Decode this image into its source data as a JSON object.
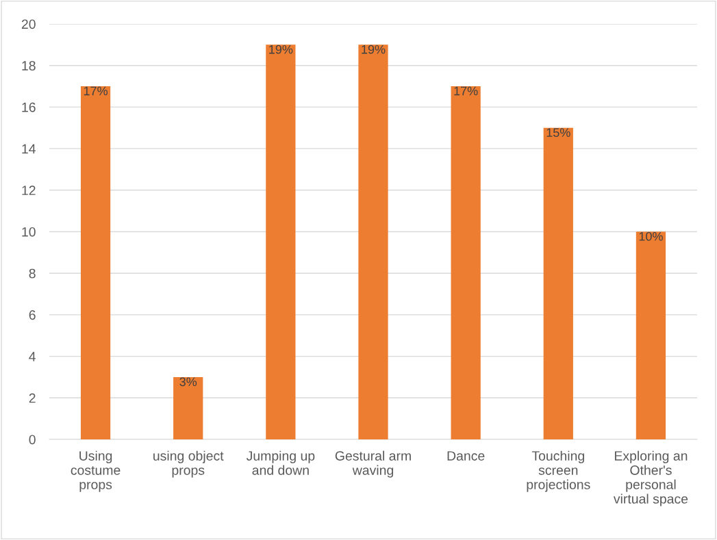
{
  "chart_data": {
    "type": "bar",
    "categories": [
      "Using\ncostume\nprops",
      "using object\nprops",
      "Jumping up\nand down",
      "Gestural arm\nwaving",
      "Dance",
      "Touching\nscreen\nprojections",
      "Exploring an\nOther's\npersonal\nvirtual space"
    ],
    "values": [
      17,
      3,
      19,
      19,
      17,
      15,
      10
    ],
    "value_labels": [
      "17%",
      "3%",
      "19%",
      "19%",
      "17%",
      "15%",
      "10%"
    ],
    "color": "#ed7d31",
    "ylim": [
      0,
      20
    ],
    "yticks": [
      0,
      2,
      4,
      6,
      8,
      10,
      12,
      14,
      16,
      18,
      20
    ],
    "grid": "y",
    "legend": false
  }
}
